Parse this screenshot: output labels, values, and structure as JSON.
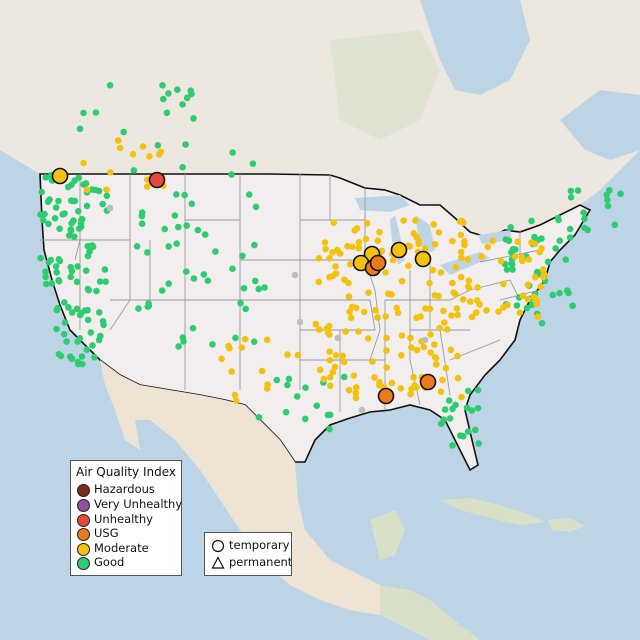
{
  "legend": {
    "title": "Air Quality Index",
    "categories": [
      {
        "label": "Hazardous",
        "color": "#7e2a1e"
      },
      {
        "label": "Very Unhealthy",
        "color": "#8e4fa0"
      },
      {
        "label": "Unhealthy",
        "color": "#e8473c"
      },
      {
        "label": "USG",
        "color": "#ec7a1c"
      },
      {
        "label": "Moderate",
        "color": "#f2c20f"
      },
      {
        "label": "Good",
        "color": "#2ecc71"
      }
    ],
    "types": [
      {
        "label": "temporary",
        "shape": "circle"
      },
      {
        "label": "permanent",
        "shape": "triangle"
      }
    ]
  },
  "colors": {
    "water": "#bcd4e6",
    "land_us": "#f2eeee",
    "land_other": "#ece8e0",
    "land_green": "#d8e0c8",
    "land_desert": "#efe4d4",
    "state_border": "#9a9a9a",
    "country_border": "#111111",
    "no_data": "#bdbdbd"
  }
}
